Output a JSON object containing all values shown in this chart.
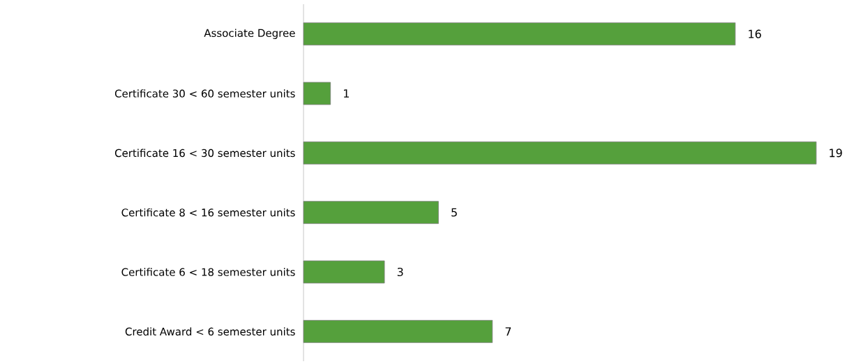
{
  "chart_data": {
    "type": "bar",
    "orientation": "horizontal",
    "categories": [
      "Associate Degree",
      "Certificate 30 < 60 semester units",
      "Certificate 16 < 30 semester units",
      "Certificate 8 < 16 semester units",
      "Certificate 6 < 18 semester units",
      "Credit Award < 6 semester units"
    ],
    "values": [
      16,
      1,
      19,
      5,
      3,
      7
    ],
    "color": "#55a03c",
    "data_labels": true
  }
}
